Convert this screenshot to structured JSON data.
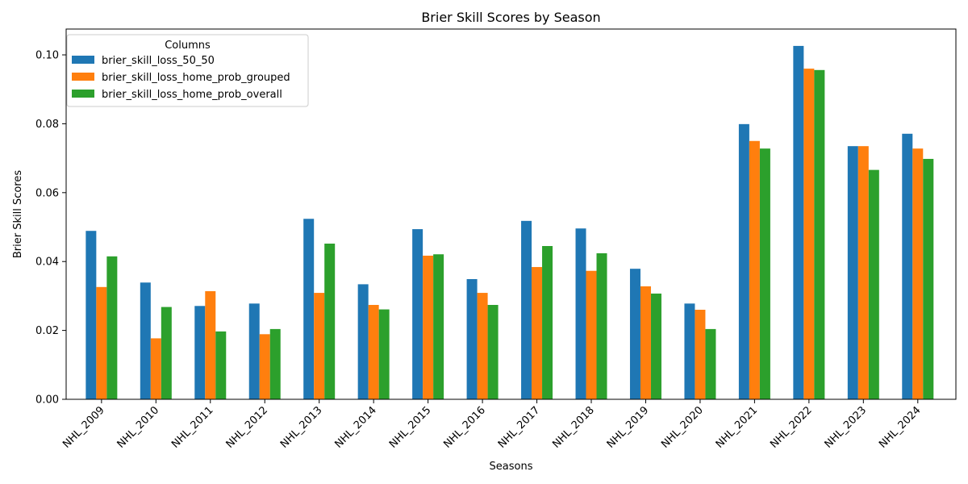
{
  "chart_data": {
    "type": "bar",
    "title": "Brier Skill Scores by Season",
    "xlabel": "Seasons",
    "ylabel": "Brier Skill Scores",
    "ylim": [
      0,
      0.1075
    ],
    "yticks": [
      "0.00",
      "0.02",
      "0.04",
      "0.06",
      "0.08",
      "0.10"
    ],
    "ytick_values": [
      0,
      0.02,
      0.04,
      0.06,
      0.08,
      0.1
    ],
    "grid": false,
    "legend": {
      "title": "Columns",
      "placement": "top-left"
    },
    "categories": [
      "NHL_2009",
      "NHL_2010",
      "NHL_2011",
      "NHL_2012",
      "NHL_2013",
      "NHL_2014",
      "NHL_2015",
      "NHL_2016",
      "NHL_2017",
      "NHL_2018",
      "NHL_2019",
      "NHL_2020",
      "NHL_2021",
      "NHL_2022",
      "NHL_2023",
      "NHL_2024"
    ],
    "series": [
      {
        "name": "brier_skill_loss_50_50",
        "color": "#1f77b4",
        "values": [
          0.0489,
          0.0339,
          0.0271,
          0.0278,
          0.0524,
          0.0334,
          0.0494,
          0.0349,
          0.0518,
          0.0496,
          0.0379,
          0.0278,
          0.0799,
          0.1026,
          0.0735,
          0.0771
        ]
      },
      {
        "name": "brier_skill_loss_home_prob_grouped",
        "color": "#ff7f0e",
        "values": [
          0.0326,
          0.0177,
          0.0314,
          0.0189,
          0.0309,
          0.0274,
          0.0417,
          0.0309,
          0.0384,
          0.0373,
          0.0328,
          0.026,
          0.075,
          0.096,
          0.0735,
          0.0728
        ]
      },
      {
        "name": "brier_skill_loss_home_prob_overall",
        "color": "#2ca02c",
        "values": [
          0.0415,
          0.0268,
          0.0197,
          0.0204,
          0.0452,
          0.0261,
          0.0421,
          0.0274,
          0.0445,
          0.0424,
          0.0307,
          0.0204,
          0.0728,
          0.0956,
          0.0666,
          0.0698
        ]
      }
    ]
  }
}
